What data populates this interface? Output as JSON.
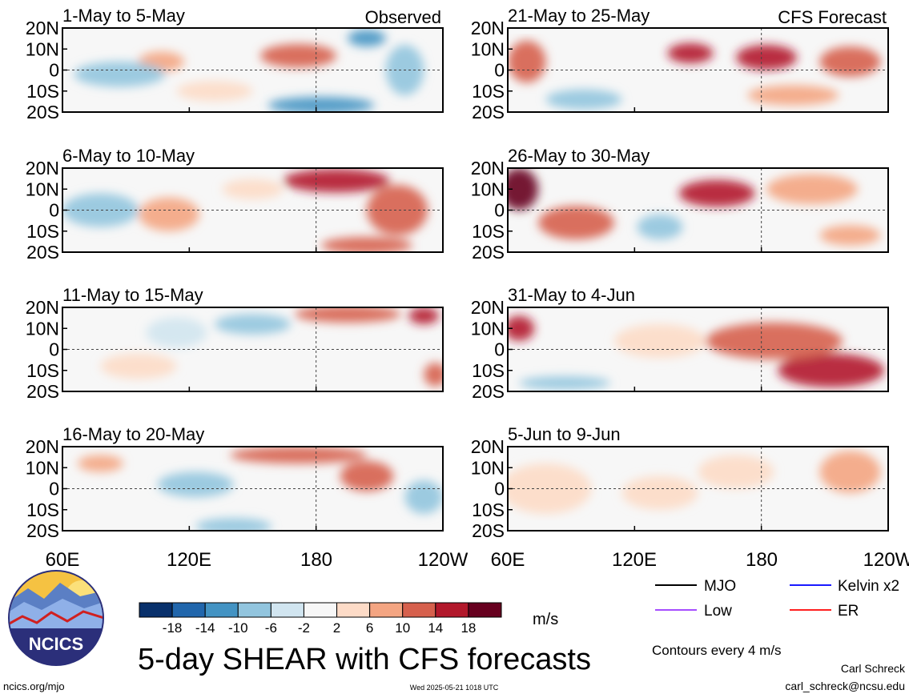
{
  "chart_data": {
    "type": "heatmap",
    "title": "5-day SHEAR with CFS forecasts",
    "variable": "SHEAR",
    "units": "m/s",
    "contour_note": "Contours every 4 m/s",
    "columns": [
      {
        "label": "Observed",
        "panels": [
          "1-May to 5-May",
          "6-May to 10-May",
          "11-May to 15-May",
          "16-May to 20-May"
        ]
      },
      {
        "label": "CFS Forecast",
        "panels": [
          "21-May to 25-May",
          "26-May to 30-May",
          "31-May to 4-Jun",
          "5-Jun to 9-Jun"
        ]
      }
    ],
    "lat_ticks": [
      "20N",
      "10N",
      "0",
      "10S",
      "20S"
    ],
    "lon_ticks": [
      "60E",
      "120E",
      "180",
      "120W"
    ],
    "lat_range": [
      -20,
      20
    ],
    "lon_range": [
      60,
      240
    ],
    "colorbar": {
      "ticks": [
        "-18",
        "-14",
        "-10",
        "-6",
        "-2",
        "2",
        "6",
        "10",
        "14",
        "18"
      ],
      "colors": [
        "#08306b",
        "#2166ac",
        "#4393c3",
        "#92c5de",
        "#d1e5f0",
        "#f7f7f7",
        "#fddbc7",
        "#f4a582",
        "#d6604d",
        "#b2182b",
        "#67001f"
      ]
    },
    "legend": [
      {
        "label": "MJO",
        "color": "#000000"
      },
      {
        "label": "Kelvin x2",
        "color": "#1a1aff"
      },
      {
        "label": "Low",
        "color": "#a64dff"
      },
      {
        "label": "ER",
        "color": "#ff2020"
      }
    ]
  },
  "footer": {
    "left": "ncics.org/mjo",
    "center": "Wed 2025-05-21 1018 UTC",
    "author": "Carl Schreck",
    "email": "carl_schreck@ncsu.edu"
  },
  "logo": {
    "text": "NCICS"
  }
}
